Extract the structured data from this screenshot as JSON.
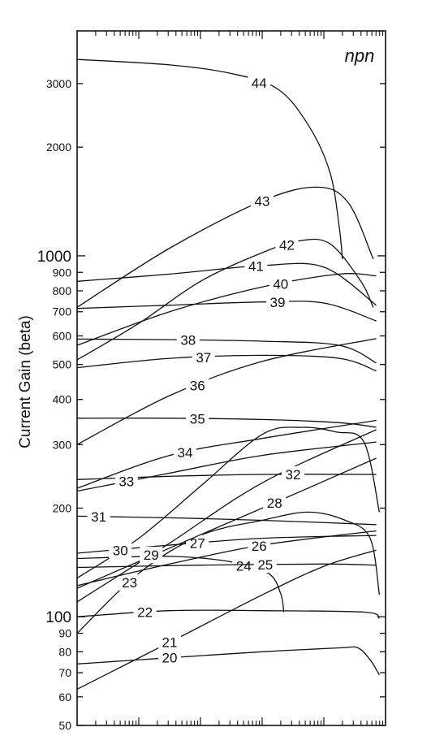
{
  "chart_data": {
    "type": "line",
    "title": "",
    "corner_label": "npn",
    "ylabel": "Current Gain (beta)",
    "xlabel": "",
    "y_scale": "log",
    "ylim": [
      50,
      4200
    ],
    "x_ticks_shown": false,
    "y_tick_labels": [
      {
        "value": 50,
        "text": "50"
      },
      {
        "value": 60,
        "text": "60"
      },
      {
        "value": 70,
        "text": "70"
      },
      {
        "value": 80,
        "text": "80"
      },
      {
        "value": 90,
        "text": "90"
      },
      {
        "value": 100,
        "text": "100"
      },
      {
        "value": 200,
        "text": "200"
      },
      {
        "value": 300,
        "text": "300"
      },
      {
        "value": 400,
        "text": "400"
      },
      {
        "value": 500,
        "text": "500"
      },
      {
        "value": 600,
        "text": "600"
      },
      {
        "value": 700,
        "text": "700"
      },
      {
        "value": 800,
        "text": "800"
      },
      {
        "value": 900,
        "text": "900"
      },
      {
        "value": 1000,
        "text": "1000"
      },
      {
        "value": 2000,
        "text": "2000"
      },
      {
        "value": 3000,
        "text": "3000"
      }
    ],
    "series": [
      {
        "name": "20",
        "label_x": 0.3,
        "points": [
          [
            0.0,
            74
          ],
          [
            0.3,
            77
          ],
          [
            0.6,
            80
          ],
          [
            0.85,
            82
          ],
          [
            0.91,
            82
          ],
          [
            0.95,
            76
          ],
          [
            0.98,
            69
          ]
        ]
      },
      {
        "name": "21",
        "label_x": 0.3,
        "points": [
          [
            0.0,
            63
          ],
          [
            0.3,
            85
          ],
          [
            0.6,
            115
          ],
          [
            0.8,
            138
          ],
          [
            0.97,
            153
          ]
        ]
      },
      {
        "name": "22",
        "label_x": 0.22,
        "points": [
          [
            0.0,
            100
          ],
          [
            0.3,
            104
          ],
          [
            0.6,
            104
          ],
          [
            0.93,
            103
          ],
          [
            0.98,
            99
          ]
        ]
      },
      {
        "name": "23",
        "label_x": 0.17,
        "points": [
          [
            0.0,
            90
          ],
          [
            0.2,
            132
          ],
          [
            0.4,
            168
          ],
          [
            0.6,
            185
          ],
          [
            0.75,
            195
          ],
          [
            0.87,
            185
          ],
          [
            0.95,
            165
          ],
          [
            0.98,
            115
          ]
        ]
      },
      {
        "name": "24",
        "label_x": 0.54,
        "points": [
          [
            0.0,
            145
          ],
          [
            0.3,
            147
          ],
          [
            0.5,
            142
          ],
          [
            0.62,
            132
          ],
          [
            0.66,
            116
          ],
          [
            0.67,
            103
          ]
        ]
      },
      {
        "name": "25",
        "label_x": 0.61,
        "points": [
          [
            0.0,
            137
          ],
          [
            0.4,
            139
          ],
          [
            0.8,
            140
          ],
          [
            0.97,
            139
          ]
        ]
      },
      {
        "name": "26",
        "label_x": 0.59,
        "points": [
          [
            0.0,
            122
          ],
          [
            0.3,
            140
          ],
          [
            0.6,
            158
          ],
          [
            0.97,
            173
          ]
        ]
      },
      {
        "name": "27",
        "label_x": 0.39,
        "points": [
          [
            0.0,
            150
          ],
          [
            0.3,
            158
          ],
          [
            0.6,
            165
          ],
          [
            0.97,
            168
          ]
        ]
      },
      {
        "name": "28",
        "label_x": 0.64,
        "points": [
          [
            0.0,
            120
          ],
          [
            0.3,
            155
          ],
          [
            0.6,
            200
          ],
          [
            0.97,
            275
          ]
        ]
      },
      {
        "name": "29",
        "label_x": 0.24,
        "points": [
          [
            0.0,
            110
          ],
          [
            0.3,
            160
          ],
          [
            0.6,
            235
          ],
          [
            0.97,
            330
          ]
        ]
      },
      {
        "name": "30",
        "label_x": 0.14,
        "points": [
          [
            0.0,
            128
          ],
          [
            0.2,
            165
          ],
          [
            0.4,
            230
          ],
          [
            0.6,
            320
          ],
          [
            0.73,
            335
          ],
          [
            0.84,
            325
          ],
          [
            0.93,
            305
          ],
          [
            0.98,
            195
          ]
        ]
      },
      {
        "name": "31",
        "label_x": 0.07,
        "points": [
          [
            0.0,
            190
          ],
          [
            0.3,
            188
          ],
          [
            0.6,
            185
          ],
          [
            0.97,
            180
          ]
        ]
      },
      {
        "name": "32",
        "label_x": 0.7,
        "points": [
          [
            0.0,
            240
          ],
          [
            0.3,
            245
          ],
          [
            0.6,
            248
          ],
          [
            0.97,
            248
          ]
        ]
      },
      {
        "name": "33",
        "label_x": 0.16,
        "points": [
          [
            0.0,
            223
          ],
          [
            0.3,
            250
          ],
          [
            0.6,
            280
          ],
          [
            0.97,
            305
          ]
        ]
      },
      {
        "name": "34",
        "label_x": 0.35,
        "points": [
          [
            0.0,
            227
          ],
          [
            0.3,
            280
          ],
          [
            0.6,
            312
          ],
          [
            0.97,
            350
          ]
        ]
      },
      {
        "name": "35",
        "label_x": 0.39,
        "points": [
          [
            0.0,
            355
          ],
          [
            0.3,
            355
          ],
          [
            0.6,
            352
          ],
          [
            0.85,
            345
          ],
          [
            0.97,
            335
          ]
        ]
      },
      {
        "name": "36",
        "label_x": 0.39,
        "points": [
          [
            0.0,
            300
          ],
          [
            0.3,
            410
          ],
          [
            0.6,
            510
          ],
          [
            0.97,
            590
          ]
        ]
      },
      {
        "name": "37",
        "label_x": 0.41,
        "points": [
          [
            0.0,
            490
          ],
          [
            0.3,
            520
          ],
          [
            0.6,
            530
          ],
          [
            0.85,
            520
          ],
          [
            0.97,
            480
          ]
        ]
      },
      {
        "name": "38",
        "label_x": 0.36,
        "points": [
          [
            0.0,
            588
          ],
          [
            0.3,
            586
          ],
          [
            0.6,
            580
          ],
          [
            0.85,
            565
          ],
          [
            0.97,
            505
          ]
        ]
      },
      {
        "name": "39",
        "label_x": 0.65,
        "points": [
          [
            0.0,
            715
          ],
          [
            0.3,
            730
          ],
          [
            0.6,
            745
          ],
          [
            0.8,
            740
          ],
          [
            0.97,
            660
          ]
        ]
      },
      {
        "name": "40",
        "label_x": 0.66,
        "points": [
          [
            0.0,
            565
          ],
          [
            0.3,
            700
          ],
          [
            0.6,
            820
          ],
          [
            0.85,
            890
          ],
          [
            0.97,
            880
          ]
        ]
      },
      {
        "name": "41",
        "label_x": 0.58,
        "points": [
          [
            0.0,
            850
          ],
          [
            0.3,
            890
          ],
          [
            0.6,
            940
          ],
          [
            0.8,
            930
          ],
          [
            0.97,
            730
          ]
        ]
      },
      {
        "name": "42",
        "label_x": 0.68,
        "points": [
          [
            0.0,
            515
          ],
          [
            0.2,
            650
          ],
          [
            0.4,
            850
          ],
          [
            0.6,
            1020
          ],
          [
            0.72,
            1100
          ],
          [
            0.82,
            1080
          ],
          [
            0.92,
            850
          ],
          [
            0.96,
            720
          ]
        ]
      },
      {
        "name": "43",
        "label_x": 0.6,
        "points": [
          [
            0.0,
            720
          ],
          [
            0.3,
            1050
          ],
          [
            0.6,
            1420
          ],
          [
            0.78,
            1550
          ],
          [
            0.88,
            1400
          ],
          [
            0.96,
            980
          ]
        ]
      },
      {
        "name": "44",
        "label_x": 0.59,
        "points": [
          [
            0.0,
            3500
          ],
          [
            0.3,
            3380
          ],
          [
            0.5,
            3200
          ],
          [
            0.65,
            2900
          ],
          [
            0.75,
            2300
          ],
          [
            0.82,
            1700
          ],
          [
            0.85,
            1200
          ],
          [
            0.86,
            980
          ]
        ]
      }
    ]
  }
}
